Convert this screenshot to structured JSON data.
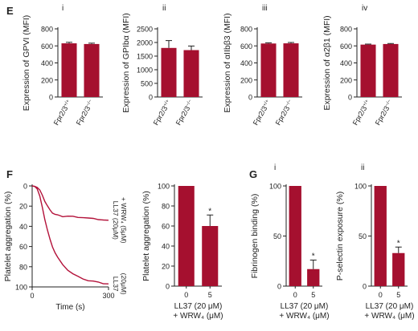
{
  "colors": {
    "bar": "#a5102f",
    "axis": "#222222",
    "line": "#b3123a"
  },
  "panel_letters": {
    "E": "E",
    "F": "F",
    "G": "G"
  },
  "chart_data": [
    {
      "id": "E-i",
      "type": "bar",
      "sub_label": "i",
      "ylabel": "Expression of GPVI (MFI)",
      "categories": [
        "Fpr2/3+/+",
        "Fpr2/3−/−"
      ],
      "cat_parts": [
        [
          "Fpr2/3",
          "+/+"
        ],
        [
          "Fpr2/3",
          "−/−"
        ]
      ],
      "values": [
        630,
        622
      ],
      "errors": [
        12,
        10
      ],
      "ylim": [
        0,
        800
      ],
      "yticks": [
        0,
        200,
        400,
        600,
        800
      ]
    },
    {
      "id": "E-ii",
      "type": "bar",
      "sub_label": "ii",
      "ylabel": "Expression of GPIbα (MFI)",
      "categories": [
        "Fpr2/3+/+",
        "Fpr2/3−/−"
      ],
      "cat_parts": [
        [
          "Fpr2/3",
          "+/+"
        ],
        [
          "Fpr2/3",
          "−/−"
        ]
      ],
      "values": [
        1800,
        1720
      ],
      "errors": [
        270,
        150
      ],
      "ylim": [
        0,
        2500
      ],
      "yticks": [
        0,
        500,
        1000,
        1500,
        2000,
        2500
      ]
    },
    {
      "id": "E-iii",
      "type": "bar",
      "sub_label": "iii",
      "ylabel": "Expression of αIIbβ3 (MFI)",
      "categories": [
        "Fpr2/3+/+",
        "Fpr2/3−/−"
      ],
      "cat_parts": [
        [
          "Fpr2/3",
          "+/+"
        ],
        [
          "Fpr2/3",
          "−/−"
        ]
      ],
      "values": [
        628,
        630
      ],
      "errors": [
        8,
        10
      ],
      "ylim": [
        0,
        800
      ],
      "yticks": [
        0,
        200,
        400,
        600,
        800
      ]
    },
    {
      "id": "E-iv",
      "type": "bar",
      "sub_label": "iv",
      "ylabel": "Expression of α2β1 (MFI)",
      "categories": [
        "Fpr2/3+/+",
        "Fpr2/3−/−"
      ],
      "cat_parts": [
        [
          "Fpr2/3",
          "+/+"
        ],
        [
          "Fpr2/3",
          "−/−"
        ]
      ],
      "values": [
        615,
        622
      ],
      "errors": [
        6,
        6
      ],
      "ylim": [
        0,
        800
      ],
      "yticks": [
        0,
        200,
        400,
        600,
        800
      ]
    },
    {
      "id": "F-trace",
      "type": "line",
      "ylabel": "Platelet aggregation (%)",
      "xlabel": "Time (s)",
      "xlim": [
        0,
        300
      ],
      "xticks": [
        0,
        300
      ],
      "ylim": [
        0,
        100
      ],
      "yticks": [
        0,
        20,
        40,
        60,
        80,
        100
      ],
      "y_inverted": true,
      "series": [
        {
          "label_lines": [
            "LL37 (20μM)",
            "+ WRW₄ (5μM)"
          ],
          "x": [
            0,
            10,
            20,
            30,
            40,
            50,
            60,
            70,
            80,
            90,
            100,
            110,
            120,
            140,
            160,
            180,
            200,
            220,
            240,
            260,
            280,
            300
          ],
          "y": [
            0,
            0.5,
            1.5,
            4,
            9,
            15,
            20,
            24,
            26.5,
            28,
            29,
            29.5,
            30,
            30,
            30.5,
            31,
            31,
            32,
            32.5,
            33,
            33.5,
            34
          ]
        },
        {
          "label_lines": [
            "LL37",
            "(20μM)"
          ],
          "x": [
            0,
            10,
            20,
            30,
            40,
            50,
            60,
            70,
            80,
            90,
            100,
            120,
            140,
            160,
            180,
            200,
            220,
            240,
            260,
            280,
            300
          ],
          "y": [
            0,
            0.5,
            3,
            10,
            21,
            33,
            44,
            53,
            60,
            66,
            71,
            78,
            83,
            87,
            90,
            92,
            93.5,
            94.5,
            95.5,
            96.5,
            97
          ]
        }
      ]
    },
    {
      "id": "F-bar",
      "type": "bar",
      "ylabel": "Platelet aggregation (%)",
      "categories": [
        "0",
        "5"
      ],
      "values": [
        100,
        60
      ],
      "errors": [
        0,
        11
      ],
      "significance": [
        "",
        "*"
      ],
      "ylim": [
        0,
        100
      ],
      "yticks": [
        0,
        20,
        40,
        60,
        80,
        100
      ],
      "xlabel_lines": [
        "LL37 (20 μM)",
        "+ WRW₄ (μM)"
      ]
    },
    {
      "id": "G-i",
      "type": "bar",
      "sub_label": "i",
      "ylabel": "Fibrinogen binding (%)",
      "categories": [
        "0",
        "5"
      ],
      "values": [
        100,
        17
      ],
      "errors": [
        0,
        9
      ],
      "significance": [
        "",
        "*"
      ],
      "ylim": [
        0,
        100
      ],
      "yticks": [
        0,
        50,
        100
      ],
      "xlabel_lines": [
        "LL37 (20 μM)",
        "+ WRW₄ (μM)"
      ]
    },
    {
      "id": "G-ii",
      "type": "bar",
      "sub_label": "ii",
      "ylabel": "P-selectin exposure (%)",
      "categories": [
        "0",
        "5"
      ],
      "values": [
        100,
        33
      ],
      "errors": [
        0,
        6
      ],
      "significance": [
        "",
        "*"
      ],
      "ylim": [
        0,
        100
      ],
      "yticks": [
        0,
        50,
        100
      ],
      "xlabel_lines": [
        "LL37 (20 μM)",
        "+ WRW₄ (μM)"
      ]
    }
  ]
}
